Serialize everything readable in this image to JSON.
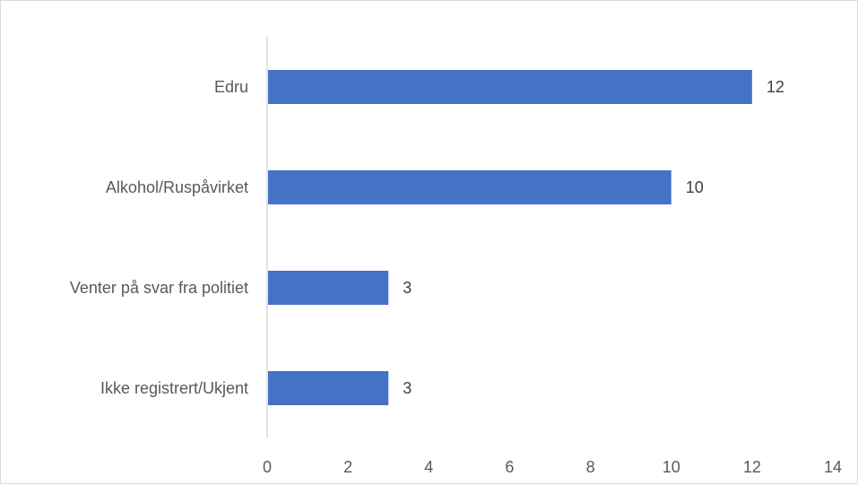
{
  "chart_data": {
    "type": "bar",
    "orientation": "horizontal",
    "title": "",
    "xlabel": "",
    "ylabel": "",
    "categories": [
      "Edru",
      "Alkohol/Ruspåvirket",
      "Venter på svar fra politiet",
      "Ikke registrert/Ukjent"
    ],
    "values": [
      12,
      10,
      3,
      3
    ],
    "xlim": [
      0,
      14
    ],
    "xticks": [
      0,
      2,
      4,
      6,
      8,
      10,
      12,
      14
    ],
    "bar_color": "#4472C4",
    "grid": false,
    "data_labels": true
  }
}
